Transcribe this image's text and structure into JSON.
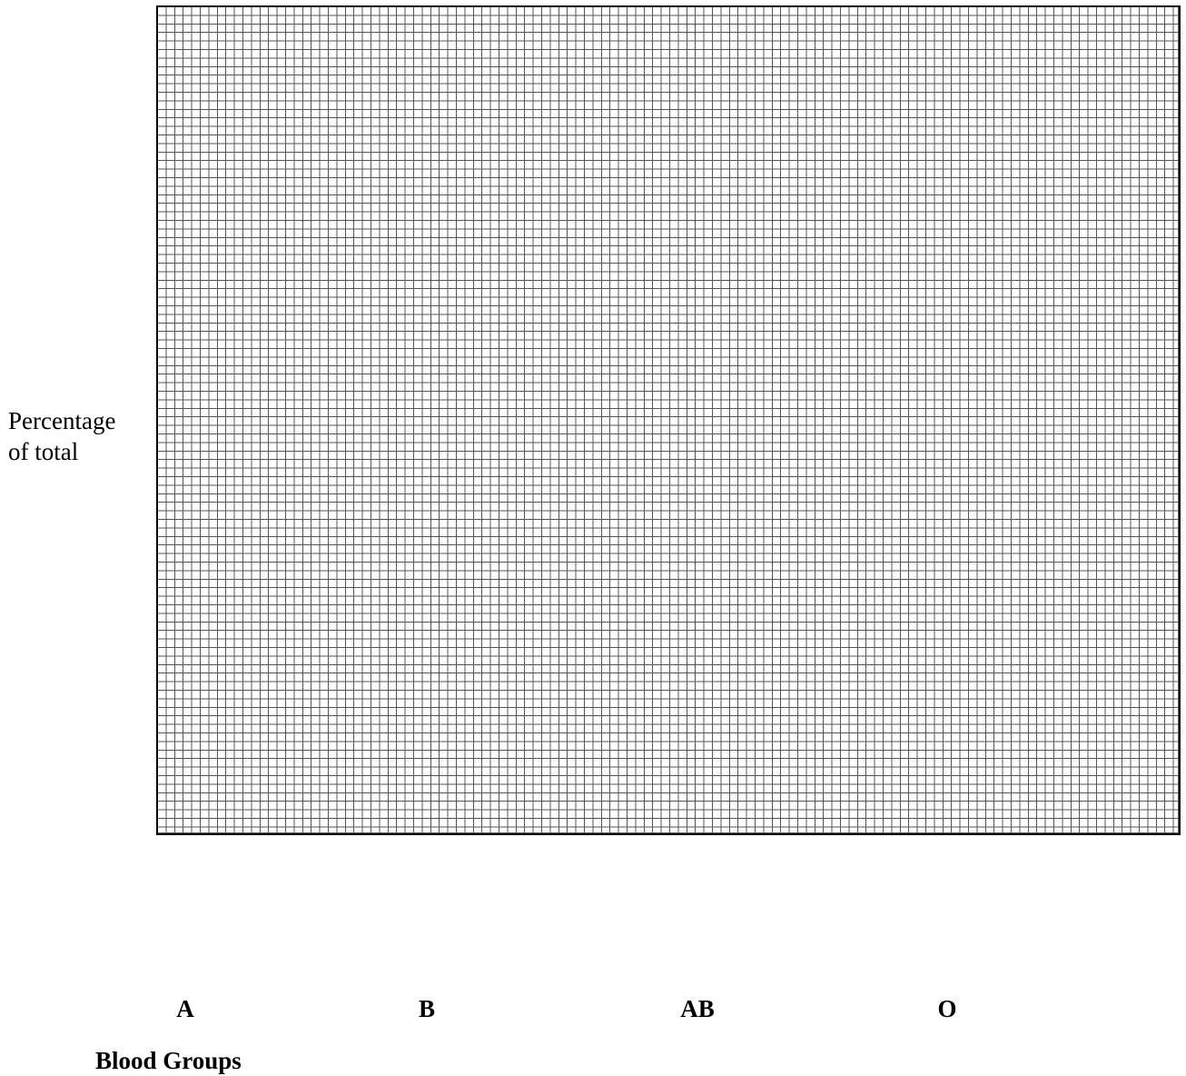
{
  "chart_data": {
    "type": "bar",
    "title": "",
    "ylabel_lines": [
      "Percentage",
      "of total"
    ],
    "xlabel": "Blood Groups",
    "categories": [
      "A",
      "B",
      "AB",
      "O"
    ],
    "series": [],
    "grid": true,
    "background": "graph-paper"
  },
  "colors": {
    "grid_line": "#555555",
    "border": "#000000",
    "background": "#ffffff"
  }
}
